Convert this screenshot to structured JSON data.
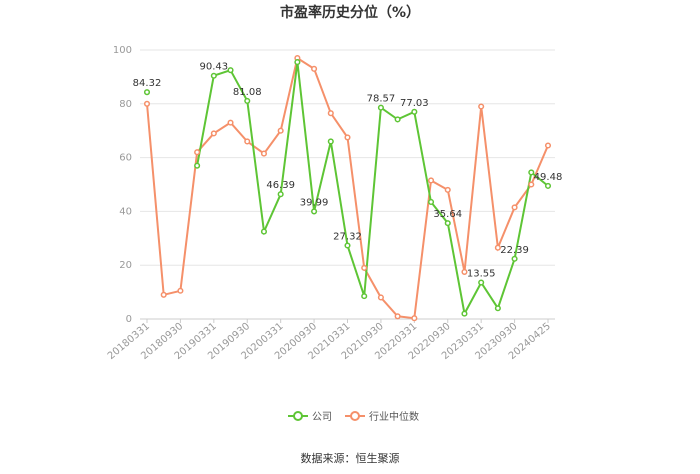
{
  "chart_data": {
    "type": "line",
    "title": "市盈率历史分位（%）",
    "ylim": [
      0,
      100
    ],
    "y_ticks": [
      0,
      20,
      40,
      60,
      80,
      100
    ],
    "grid": true,
    "legend_position": "bottom",
    "x_tick_labels": [
      "20180331",
      "20180930",
      "20190331",
      "20190930",
      "20200331",
      "20200930",
      "20210331",
      "20210930",
      "20220331",
      "20220930",
      "20230331",
      "20230930",
      "20240425"
    ],
    "series": [
      {
        "name": "公司",
        "color": "#5ec535",
        "values": [
          84.32,
          null,
          null,
          57,
          90.43,
          92.5,
          81.08,
          32.5,
          46.39,
          95.5,
          39.99,
          66,
          27.32,
          8.5,
          78.57,
          74.2,
          77.03,
          43.5,
          35.64,
          2,
          13.55,
          4,
          22.39,
          54.5,
          49.48
        ],
        "labels": [
          {
            "index": 0,
            "text": "84.32"
          },
          {
            "index": 4,
            "text": "90.43"
          },
          {
            "index": 6,
            "text": "81.08"
          },
          {
            "index": 8,
            "text": "46.39"
          },
          {
            "index": 10,
            "text": "39.99"
          },
          {
            "index": 12,
            "text": "27.32"
          },
          {
            "index": 14,
            "text": "78.57"
          },
          {
            "index": 16,
            "text": "77.03"
          },
          {
            "index": 18,
            "text": "35.64"
          },
          {
            "index": 20,
            "text": "13.55"
          },
          {
            "index": 22,
            "text": "22.39"
          },
          {
            "index": 24,
            "text": "49.48"
          }
        ]
      },
      {
        "name": "行业中位数",
        "color": "#f5906a",
        "values": [
          80,
          9,
          10.5,
          62,
          69,
          73,
          66,
          61.5,
          70,
          97,
          93,
          76.5,
          67.5,
          19,
          8,
          1,
          0.3,
          51.5,
          48,
          17.5,
          79,
          26.5,
          41.5,
          50,
          64.5
        ],
        "labels": []
      }
    ]
  },
  "source": "数据来源：恒生聚源"
}
